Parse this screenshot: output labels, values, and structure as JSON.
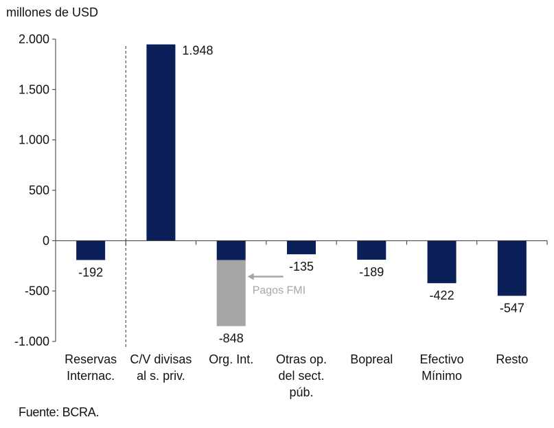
{
  "chart_data": {
    "type": "bar",
    "unit_label": "millones de USD",
    "source": "Fuente: BCRA.",
    "ylim": [
      -1000,
      2000
    ],
    "yticks": [
      2000,
      1500,
      1000,
      500,
      0,
      -500,
      -1000
    ],
    "ytick_labels": [
      "2.000",
      "1.500",
      "1.000",
      "500",
      "0",
      "-500",
      "-1.000"
    ],
    "categories": [
      [
        "Reservas",
        "Internac."
      ],
      [
        "C/V divisas",
        "al s. priv."
      ],
      [
        "Org. Int."
      ],
      [
        "Otras op.",
        "del sect.",
        "púb."
      ],
      [
        "Bopreal"
      ],
      [
        "Efectivo",
        "Mínimo"
      ],
      [
        "Resto"
      ]
    ],
    "values": [
      -192,
      1948,
      -848,
      -135,
      -189,
      -422,
      -547
    ],
    "value_labels": [
      "-192",
      "1.948",
      "-848",
      "-135",
      "-189",
      "-422",
      "-547"
    ],
    "breakdown": {
      "category_index": 2,
      "segments": [
        {
          "value": -192,
          "color": "#0b1f58"
        },
        {
          "value": -656,
          "color": "#a6a6a6"
        }
      ],
      "annotation": "Pagos FMI",
      "annotation_color": "#a6a6a6"
    },
    "bar_color": "#0b1f58",
    "separator_after_category": 0,
    "grid": false
  }
}
